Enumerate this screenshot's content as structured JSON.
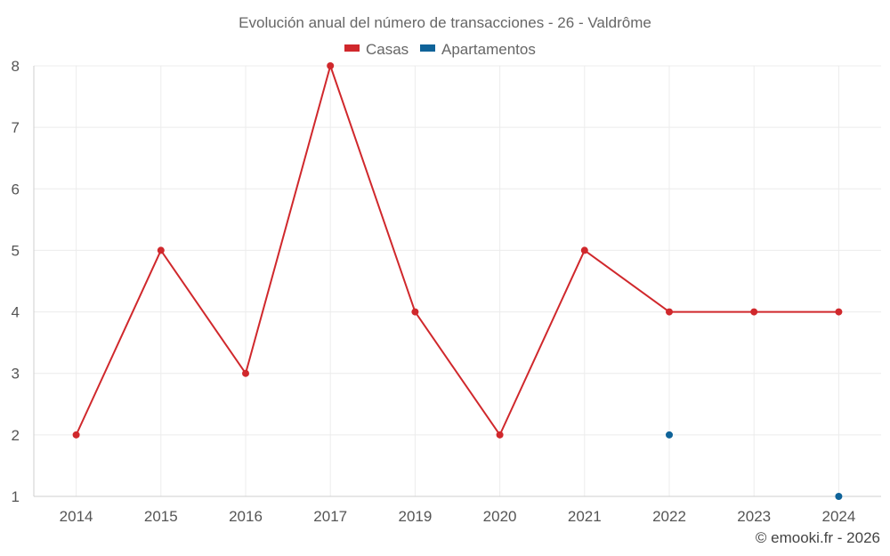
{
  "chart_data": {
    "type": "line",
    "title": "Evolución anual del número de transacciones - 26 - Valdrôme",
    "categories": [
      "2014",
      "2015",
      "2016",
      "2017",
      "2019",
      "2020",
      "2021",
      "2022",
      "2023",
      "2024"
    ],
    "series": [
      {
        "name": "Casas",
        "color": "#d0282c",
        "values": [
          2,
          5,
          3,
          8,
          4,
          2,
          5,
          4,
          4,
          4
        ]
      },
      {
        "name": "Apartamentos",
        "color": "#0f6399",
        "values": [
          null,
          null,
          null,
          null,
          null,
          null,
          null,
          2,
          null,
          1
        ]
      }
    ],
    "yticks": [
      "1",
      "2",
      "3",
      "4",
      "5",
      "6",
      "7",
      "8"
    ],
    "ylim": [
      1,
      8
    ],
    "xlabel": "",
    "ylabel": "",
    "grid": true,
    "legend_position": "top-center"
  },
  "credit": "© emooki.fr - 2026"
}
